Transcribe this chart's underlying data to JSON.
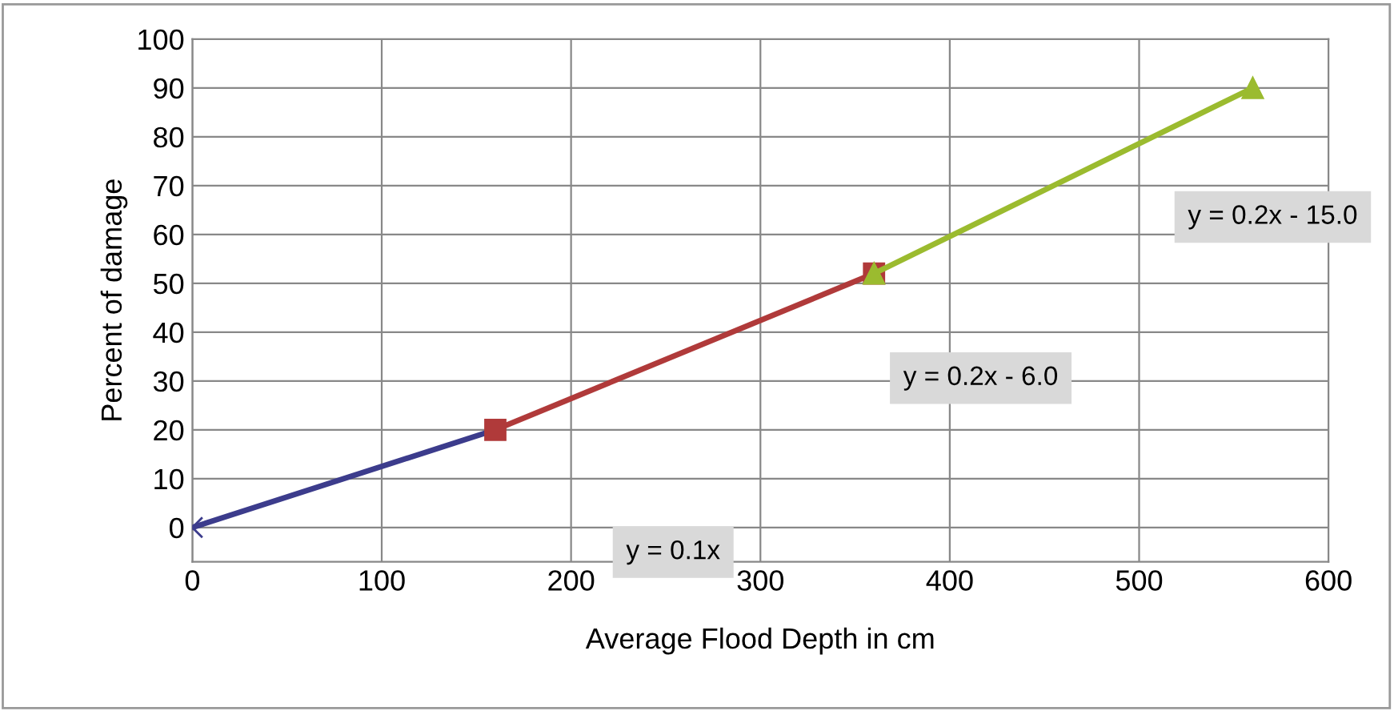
{
  "chart_data": {
    "type": "line",
    "xlabel": "Average Flood Depth in cm",
    "ylabel": "Percent of damage",
    "xlim": [
      0,
      600
    ],
    "xticks": [
      0,
      100,
      200,
      300,
      400,
      500,
      600
    ],
    "ylim": [
      -7,
      100
    ],
    "yticks": [
      0,
      10,
      20,
      30,
      40,
      50,
      60,
      70,
      80,
      90,
      100
    ],
    "grid": true,
    "series": [
      {
        "color": "#3c3c8c",
        "x": [
          0,
          160
        ],
        "values": [
          0,
          20
        ],
        "marker": "cross"
      },
      {
        "color": "#b03a3a",
        "x": [
          160,
          360
        ],
        "values": [
          20,
          52
        ],
        "marker": "square"
      },
      {
        "color": "#9bbb2f",
        "x": [
          360,
          560
        ],
        "values": [
          52,
          90
        ],
        "marker": "triangle"
      }
    ],
    "annotations": [
      "y = 0.1x",
      "y = 0.2x - 6.0",
      "y = 0.2x - 15.0"
    ]
  }
}
